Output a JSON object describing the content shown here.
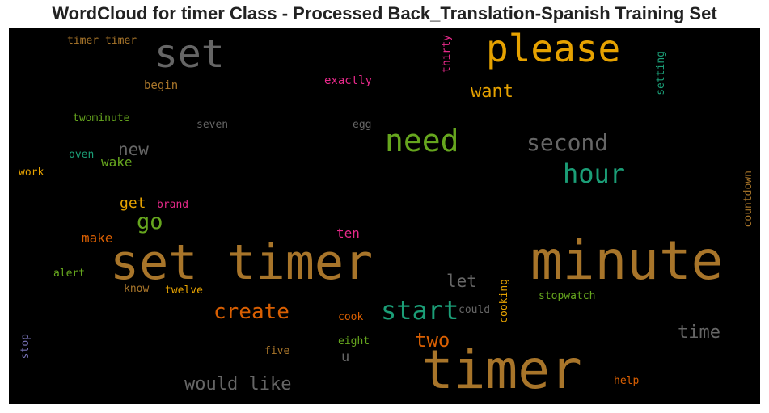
{
  "title": "WordCloud for timer Class - Processed Back_Translation-Spanish Training Set",
  "chart_data": {
    "type": "wordcloud",
    "background": "#000000",
    "words": [
      {
        "text": "timer",
        "color": "#a8752a",
        "orientation": "horizontal"
      },
      {
        "text": "minute",
        "color": "#a8752a",
        "orientation": "horizontal"
      },
      {
        "text": "set timer",
        "color": "#a8752a",
        "orientation": "horizontal"
      },
      {
        "text": "please",
        "color": "#e6a200",
        "orientation": "horizontal"
      },
      {
        "text": "set",
        "color": "#666666",
        "orientation": "horizontal"
      },
      {
        "text": "need",
        "color": "#66a61e",
        "orientation": "horizontal"
      },
      {
        "text": "start",
        "color": "#1b9e77",
        "orientation": "horizontal"
      },
      {
        "text": "hour",
        "color": "#1b9e77",
        "orientation": "horizontal"
      },
      {
        "text": "second",
        "color": "#666666",
        "orientation": "horizontal"
      },
      {
        "text": "create",
        "color": "#d95f02",
        "orientation": "horizontal"
      },
      {
        "text": "would like",
        "color": "#666666",
        "orientation": "horizontal"
      },
      {
        "text": "two",
        "color": "#d95f02",
        "orientation": "horizontal"
      },
      {
        "text": "go",
        "color": "#66a61e",
        "orientation": "horizontal"
      },
      {
        "text": "want",
        "color": "#e6a200",
        "orientation": "horizontal"
      },
      {
        "text": "time",
        "color": "#666666",
        "orientation": "horizontal"
      },
      {
        "text": "new",
        "color": "#666666",
        "orientation": "horizontal"
      },
      {
        "text": "let",
        "color": "#666666",
        "orientation": "horizontal"
      },
      {
        "text": "make",
        "color": "#d95f02",
        "orientation": "horizontal"
      },
      {
        "text": "get",
        "color": "#e6a200",
        "orientation": "horizontal"
      },
      {
        "text": "wake",
        "color": "#66a61e",
        "orientation": "horizontal"
      },
      {
        "text": "ten",
        "color": "#e7298a",
        "orientation": "horizontal"
      },
      {
        "text": "exactly",
        "color": "#e7298a",
        "orientation": "horizontal"
      },
      {
        "text": "timer timer",
        "color": "#a8752a",
        "orientation": "horizontal"
      },
      {
        "text": "begin",
        "color": "#a8752a",
        "orientation": "horizontal"
      },
      {
        "text": "twominute",
        "color": "#66a61e",
        "orientation": "horizontal"
      },
      {
        "text": "seven",
        "color": "#666666",
        "orientation": "horizontal"
      },
      {
        "text": "egg",
        "color": "#666666",
        "orientation": "horizontal"
      },
      {
        "text": "oven",
        "color": "#1b9e77",
        "orientation": "horizontal"
      },
      {
        "text": "work",
        "color": "#e6a200",
        "orientation": "horizontal"
      },
      {
        "text": "brand",
        "color": "#e7298a",
        "orientation": "horizontal"
      },
      {
        "text": "alert",
        "color": "#66a61e",
        "orientation": "horizontal"
      },
      {
        "text": "know",
        "color": "#a8752a",
        "orientation": "horizontal"
      },
      {
        "text": "twelve",
        "color": "#e6a200",
        "orientation": "horizontal"
      },
      {
        "text": "cook",
        "color": "#d95f02",
        "orientation": "horizontal"
      },
      {
        "text": "could",
        "color": "#666666",
        "orientation": "horizontal"
      },
      {
        "text": "stopwatch",
        "color": "#66a61e",
        "orientation": "horizontal"
      },
      {
        "text": "eight",
        "color": "#66a61e",
        "orientation": "horizontal"
      },
      {
        "text": "u",
        "color": "#666666",
        "orientation": "horizontal"
      },
      {
        "text": "five",
        "color": "#a8752a",
        "orientation": "horizontal"
      },
      {
        "text": "help",
        "color": "#d95f02",
        "orientation": "horizontal"
      },
      {
        "text": "thirty",
        "color": "#e7298a",
        "orientation": "vertical"
      },
      {
        "text": "setting",
        "color": "#1b9e77",
        "orientation": "vertical"
      },
      {
        "text": "countdown",
        "color": "#a8752a",
        "orientation": "vertical"
      },
      {
        "text": "cooking",
        "color": "#e6a200",
        "orientation": "vertical"
      },
      {
        "text": "stop",
        "color": "#7570b3",
        "orientation": "vertical"
      }
    ]
  }
}
